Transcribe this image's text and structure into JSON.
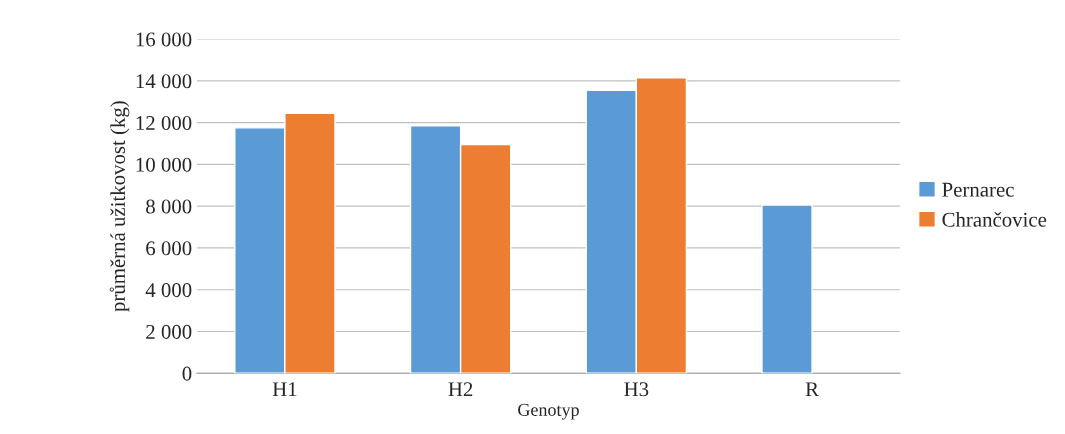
{
  "chart_data": {
    "type": "bar",
    "xlabel": "Genotyp",
    "ylabel": "průměrná užitkovost (kg)",
    "categories": [
      "H1",
      "H2",
      "H3",
      "R"
    ],
    "series": [
      {
        "name": "Pernarec",
        "color": "#5b9bd5",
        "values": [
          11750,
          11850,
          13550,
          8050
        ]
      },
      {
        "name": "Chrančovice",
        "color": "#ed7d31",
        "values": [
          12450,
          10950,
          14150,
          null
        ]
      }
    ],
    "ylim": [
      0,
      16000
    ],
    "yticks": [
      0,
      {
        "value": 2000,
        "label": "2 000"
      },
      {
        "value": 4000,
        "label": "4 000"
      },
      {
        "value": 6000,
        "label": "6 000"
      },
      {
        "value": 8000,
        "label": "8 000"
      },
      {
        "value": 10000,
        "label": "10 000"
      },
      {
        "value": 12000,
        "label": "12 000"
      },
      {
        "value": 14000,
        "label": "14 000"
      },
      {
        "value": 16000,
        "label": "16 000"
      }
    ],
    "grid": "y",
    "legend": "right"
  }
}
